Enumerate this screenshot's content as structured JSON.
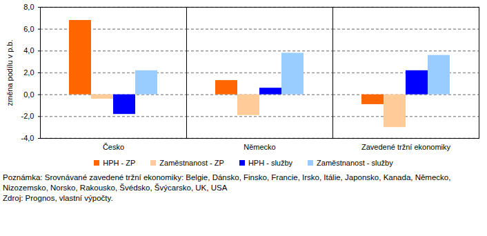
{
  "chart_data": {
    "type": "bar",
    "categories": [
      "Česko",
      "Německo",
      "Zavedené tržní ekonomiky"
    ],
    "series": [
      {
        "name": "HPH - ZP",
        "color": "#ff6600",
        "values": [
          6.8,
          1.3,
          -0.9
        ]
      },
      {
        "name": "Zaměstnanost - ZP",
        "color": "#ffcc99",
        "values": [
          -0.4,
          -1.9,
          -3.0
        ]
      },
      {
        "name": "HPH - služby",
        "color": "#0000ff",
        "values": [
          -1.8,
          0.6,
          2.2
        ]
      },
      {
        "name": "Zaměstnanost - služby",
        "color": "#99ccff",
        "values": [
          2.2,
          3.8,
          3.6
        ]
      }
    ],
    "y_label": "změna podílu v p.b.",
    "ylim": [
      -4,
      8
    ],
    "yticks": [
      {
        "value": -4,
        "label": "-4,0"
      },
      {
        "value": -2,
        "label": "-2,0"
      },
      {
        "value": 0,
        "label": "0,0"
      },
      {
        "value": 2,
        "label": "2,0"
      },
      {
        "value": 4,
        "label": "4,0"
      },
      {
        "value": 6,
        "label": "6,0"
      },
      {
        "value": 8,
        "label": "8,0"
      }
    ],
    "grid": true,
    "legend": "bottom",
    "annotations": [
      "Poznámka: Srovnávané zavedené tržní ekonomiky: Belgie, Dánsko, Finsko, Francie, Irsko, Itálie, Japonsko, Kanada, Německo, Nizozemsko, Norsko, Rakousko, Švédsko, Švýcarsko, UK, USA",
      "Zdroj: Prognos, vlastní výpočty."
    ]
  }
}
